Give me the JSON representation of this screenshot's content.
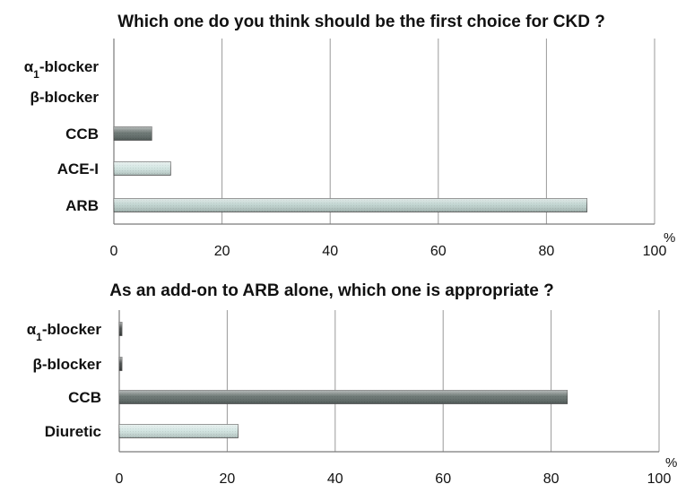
{
  "chart_data": [
    {
      "type": "bar",
      "orientation": "horizontal",
      "title": "Which one  do you think should be the first choice for CKD ?",
      "categories": [
        "α1-blocker",
        "β-blocker",
        "CCB",
        "ACE-I",
        "ARB"
      ],
      "category_labels": [
        {
          "main": "α",
          "sub": "1",
          "rest": "-blocker"
        },
        {
          "main": "β-blocker",
          "sub": "",
          "rest": ""
        },
        {
          "main": "CCB",
          "sub": "",
          "rest": ""
        },
        {
          "main": "ACE-I",
          "sub": "",
          "rest": ""
        },
        {
          "main": "ARB",
          "sub": "",
          "rest": ""
        }
      ],
      "values": [
        0,
        0,
        7,
        10.5,
        87.5
      ],
      "colors": [
        "#5f6b68",
        "#5f6b68",
        "#5f6b68",
        "#cfe3df",
        "#bcd1cd"
      ],
      "xlim": [
        0,
        100
      ],
      "xticks": [
        "0",
        "20",
        "40",
        "60",
        "80",
        "100"
      ],
      "unit": "%",
      "grid": true
    },
    {
      "type": "bar",
      "orientation": "horizontal",
      "title": "As an add-on to ARB  alone, which one is appropriate ?",
      "categories": [
        "α1-blocker",
        "β-blocker",
        "CCB",
        "Diuretic"
      ],
      "category_labels": [
        {
          "main": "α",
          "sub": "1",
          "rest": "-blocker"
        },
        {
          "main": "β-blocker",
          "sub": "",
          "rest": ""
        },
        {
          "main": "CCB",
          "sub": "",
          "rest": ""
        },
        {
          "main": "Diuretic",
          "sub": "",
          "rest": ""
        }
      ],
      "values": [
        0.5,
        0.5,
        83,
        22
      ],
      "colors": [
        "#3a3f3e",
        "#3a3f3e",
        "#5f6b68",
        "#cfe3df"
      ],
      "xlim": [
        0,
        100
      ],
      "xticks": [
        "0",
        "20",
        "40",
        "60",
        "80",
        "100"
      ],
      "unit": "%",
      "grid": true
    }
  ]
}
